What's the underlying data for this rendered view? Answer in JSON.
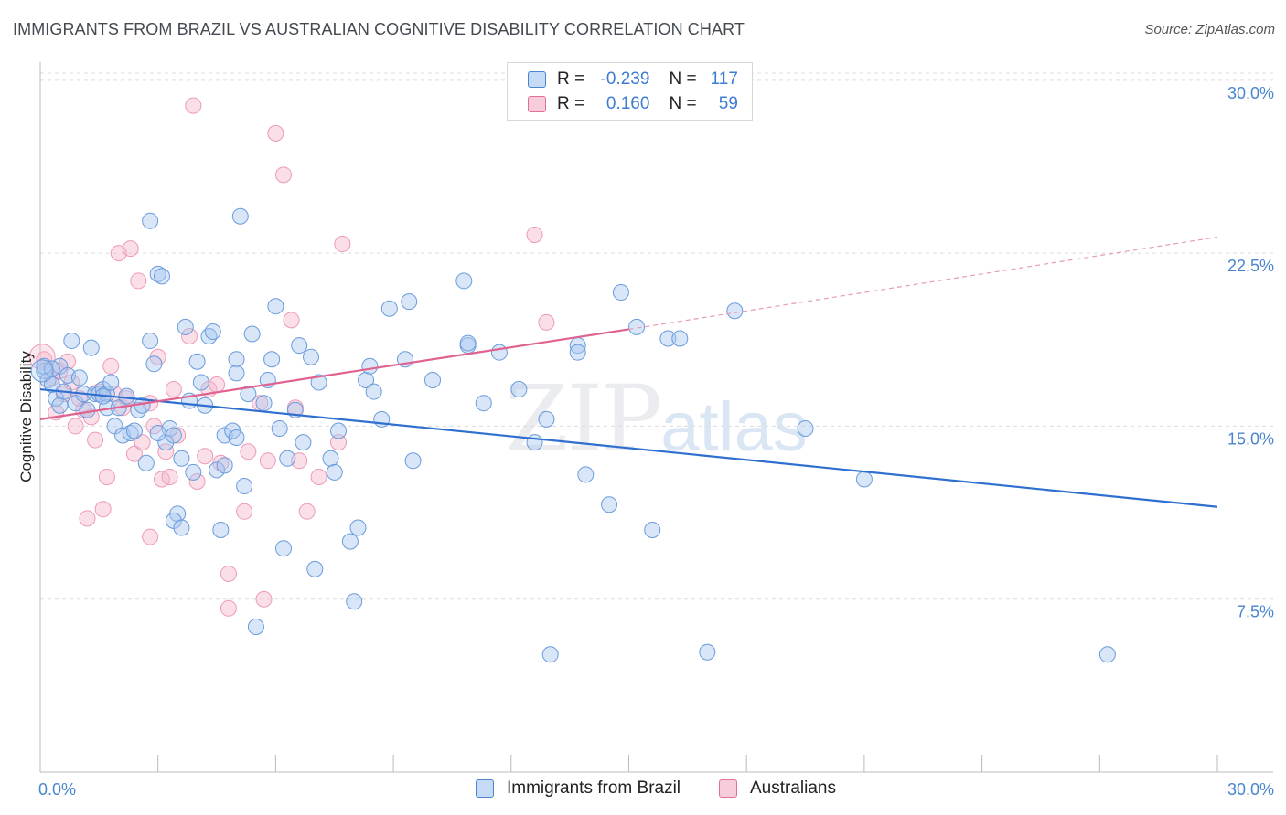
{
  "title": "IMMIGRANTS FROM BRAZIL VS AUSTRALIAN COGNITIVE DISABILITY CORRELATION CHART",
  "source": "Source: ZipAtlas.com",
  "watermark": {
    "zip": "ZIP",
    "atlas": "atlas"
  },
  "colors": {
    "blue": "#4a86cf",
    "blue_fill": "#a9c8ef",
    "blue_line": "#2f6fd0",
    "pink": "#e86d9a",
    "pink_fill": "#f5b8cc",
    "pink_line": "#e0628f"
  },
  "legend": {
    "rows": [
      {
        "r_label": "R =",
        "r_value": "-0.239",
        "n_label": "N =",
        "n_value": "117"
      },
      {
        "r_label": "R =",
        "r_value": "0.160",
        "n_label": "N =",
        "n_value": "59"
      }
    ]
  },
  "bottom_legend": [
    "Immigrants from Brazil",
    "Australians"
  ],
  "chart_data": {
    "type": "scatter",
    "title": "IMMIGRANTS FROM BRAZIL VS AUSTRALIAN COGNITIVE DISABILITY CORRELATION CHART",
    "xlabel": "",
    "ylabel": "Cognitive Disability",
    "xlim": [
      0,
      30
    ],
    "ylim": [
      0,
      31.5
    ],
    "x_tick_labels": [
      "0.0%",
      "30.0%"
    ],
    "y_ticks": [
      7.5,
      15.0,
      22.5,
      30.0
    ],
    "y_tick_labels": [
      "7.5%",
      "15.0%",
      "22.5%",
      "30.0%"
    ],
    "grid": "horizontal dashed",
    "legend_position": "top-center",
    "series": [
      {
        "name": "Immigrants from Brazil",
        "color": "#4a86cf",
        "trend": {
          "x": [
            0,
            30
          ],
          "y": [
            16.6,
            11.5
          ],
          "style": "solid"
        },
        "points": [
          [
            0.1,
            17.4
          ],
          [
            0.2,
            17.0
          ],
          [
            0.3,
            16.8
          ],
          [
            0.4,
            16.2
          ],
          [
            0.5,
            17.6
          ],
          [
            0.5,
            15.9
          ],
          [
            0.6,
            16.5
          ],
          [
            0.7,
            17.2
          ],
          [
            0.8,
            18.7
          ],
          [
            0.9,
            16.0
          ],
          [
            1.0,
            17.1
          ],
          [
            1.1,
            16.4
          ],
          [
            1.2,
            15.7
          ],
          [
            1.3,
            18.4
          ],
          [
            1.4,
            16.4
          ],
          [
            1.5,
            16.4
          ],
          [
            1.6,
            16.6
          ],
          [
            1.7,
            16.4
          ],
          [
            1.7,
            15.8
          ],
          [
            1.8,
            16.9
          ],
          [
            1.9,
            15.0
          ],
          [
            2.0,
            15.8
          ],
          [
            2.1,
            14.6
          ],
          [
            2.2,
            16.3
          ],
          [
            2.3,
            14.7
          ],
          [
            2.4,
            14.8
          ],
          [
            2.5,
            15.7
          ],
          [
            2.6,
            15.9
          ],
          [
            2.8,
            23.9
          ],
          [
            2.7,
            13.4
          ],
          [
            2.8,
            18.7
          ],
          [
            2.9,
            17.7
          ],
          [
            3.0,
            21.6
          ],
          [
            3.1,
            21.5
          ],
          [
            3.2,
            14.3
          ],
          [
            3.3,
            14.9
          ],
          [
            3.4,
            14.6
          ],
          [
            3.5,
            11.2
          ],
          [
            3.4,
            10.9
          ],
          [
            3.6,
            10.6
          ],
          [
            3.6,
            13.6
          ],
          [
            3.7,
            19.3
          ],
          [
            3.8,
            16.1
          ],
          [
            3.9,
            13.0
          ],
          [
            4.0,
            17.8
          ],
          [
            4.1,
            16.9
          ],
          [
            4.2,
            15.9
          ],
          [
            4.3,
            18.9
          ],
          [
            4.4,
            19.1
          ],
          [
            4.5,
            13.1
          ],
          [
            4.6,
            10.5
          ],
          [
            4.7,
            13.3
          ],
          [
            4.7,
            14.6
          ],
          [
            4.9,
            14.8
          ],
          [
            5.0,
            17.9
          ],
          [
            5.0,
            17.3
          ],
          [
            5.1,
            24.1
          ],
          [
            5.2,
            12.4
          ],
          [
            5.3,
            16.4
          ],
          [
            5.4,
            19.0
          ],
          [
            5.5,
            6.3
          ],
          [
            5.7,
            16.0
          ],
          [
            5.8,
            17.0
          ],
          [
            5.9,
            17.9
          ],
          [
            6.0,
            20.2
          ],
          [
            6.1,
            14.9
          ],
          [
            6.2,
            9.7
          ],
          [
            6.3,
            13.6
          ],
          [
            6.5,
            15.7
          ],
          [
            6.6,
            18.5
          ],
          [
            6.7,
            14.3
          ],
          [
            6.9,
            18.0
          ],
          [
            7.0,
            8.8
          ],
          [
            7.1,
            16.9
          ],
          [
            7.4,
            13.6
          ],
          [
            7.5,
            13.0
          ],
          [
            7.6,
            14.8
          ],
          [
            7.9,
            10.0
          ],
          [
            8.0,
            7.4
          ],
          [
            8.1,
            10.6
          ],
          [
            8.3,
            17.0
          ],
          [
            8.4,
            17.6
          ],
          [
            8.5,
            16.5
          ],
          [
            8.7,
            15.3
          ],
          [
            8.9,
            20.1
          ],
          [
            9.3,
            17.9
          ],
          [
            9.4,
            20.4
          ],
          [
            9.5,
            13.5
          ],
          [
            10.0,
            17.0
          ],
          [
            10.8,
            21.3
          ],
          [
            10.9,
            18.5
          ],
          [
            10.9,
            18.6
          ],
          [
            11.3,
            16.0
          ],
          [
            11.7,
            18.2
          ],
          [
            12.2,
            16.6
          ],
          [
            12.6,
            14.3
          ],
          [
            12.9,
            15.3
          ],
          [
            13.0,
            5.1
          ],
          [
            13.7,
            18.5
          ],
          [
            13.7,
            18.2
          ],
          [
            13.9,
            12.9
          ],
          [
            14.5,
            11.6
          ],
          [
            14.8,
            20.8
          ],
          [
            15.2,
            19.3
          ],
          [
            15.6,
            10.5
          ],
          [
            16.0,
            18.8
          ],
          [
            16.3,
            18.8
          ],
          [
            17.0,
            5.2
          ],
          [
            17.7,
            20.0
          ],
          [
            19.5,
            14.9
          ],
          [
            21.0,
            12.7
          ],
          [
            27.2,
            5.1
          ],
          [
            0.1,
            17.6
          ],
          [
            0.3,
            17.5
          ],
          [
            1.6,
            16.3
          ],
          [
            3.0,
            14.7
          ],
          [
            5.0,
            14.5
          ]
        ]
      },
      {
        "name": "Australians",
        "color": "#e86d9a",
        "trend": {
          "x": [
            0,
            15
          ],
          "y": [
            15.3,
            19.2
          ],
          "style": "solid",
          "extension": {
            "x": [
              15,
              30
            ],
            "y": [
              19.2,
              23.2
            ],
            "style": "dashed"
          }
        },
        "points": [
          [
            0.1,
            17.9
          ],
          [
            0.3,
            17.1
          ],
          [
            0.4,
            15.6
          ],
          [
            0.5,
            17.4
          ],
          [
            0.6,
            16.4
          ],
          [
            0.7,
            17.8
          ],
          [
            0.8,
            16.9
          ],
          [
            0.9,
            15.0
          ],
          [
            1.0,
            16.2
          ],
          [
            1.1,
            15.7
          ],
          [
            1.2,
            11.0
          ],
          [
            1.3,
            15.4
          ],
          [
            1.4,
            14.4
          ],
          [
            1.5,
            16.5
          ],
          [
            1.6,
            11.4
          ],
          [
            1.7,
            12.8
          ],
          [
            1.8,
            17.6
          ],
          [
            1.9,
            16.4
          ],
          [
            2.0,
            22.5
          ],
          [
            2.1,
            15.8
          ],
          [
            2.2,
            16.2
          ],
          [
            2.3,
            22.7
          ],
          [
            2.4,
            13.8
          ],
          [
            2.5,
            21.3
          ],
          [
            2.6,
            14.3
          ],
          [
            2.8,
            16.0
          ],
          [
            2.8,
            10.2
          ],
          [
            2.9,
            15.0
          ],
          [
            3.0,
            18.0
          ],
          [
            3.1,
            12.7
          ],
          [
            3.2,
            13.9
          ],
          [
            3.3,
            12.8
          ],
          [
            3.4,
            16.6
          ],
          [
            3.5,
            14.6
          ],
          [
            3.8,
            18.9
          ],
          [
            3.9,
            28.9
          ],
          [
            4.0,
            12.6
          ],
          [
            4.2,
            13.7
          ],
          [
            4.3,
            16.6
          ],
          [
            4.5,
            16.8
          ],
          [
            4.6,
            13.4
          ],
          [
            4.8,
            7.1
          ],
          [
            4.8,
            8.6
          ],
          [
            5.2,
            11.3
          ],
          [
            5.3,
            13.9
          ],
          [
            5.6,
            16.0
          ],
          [
            5.7,
            7.5
          ],
          [
            5.8,
            13.5
          ],
          [
            6.0,
            27.7
          ],
          [
            6.2,
            25.9
          ],
          [
            6.4,
            19.6
          ],
          [
            6.5,
            15.8
          ],
          [
            6.6,
            13.5
          ],
          [
            6.8,
            11.3
          ],
          [
            7.1,
            12.8
          ],
          [
            7.6,
            14.3
          ],
          [
            7.7,
            22.9
          ],
          [
            12.6,
            23.3
          ],
          [
            12.9,
            19.5
          ]
        ]
      }
    ]
  }
}
